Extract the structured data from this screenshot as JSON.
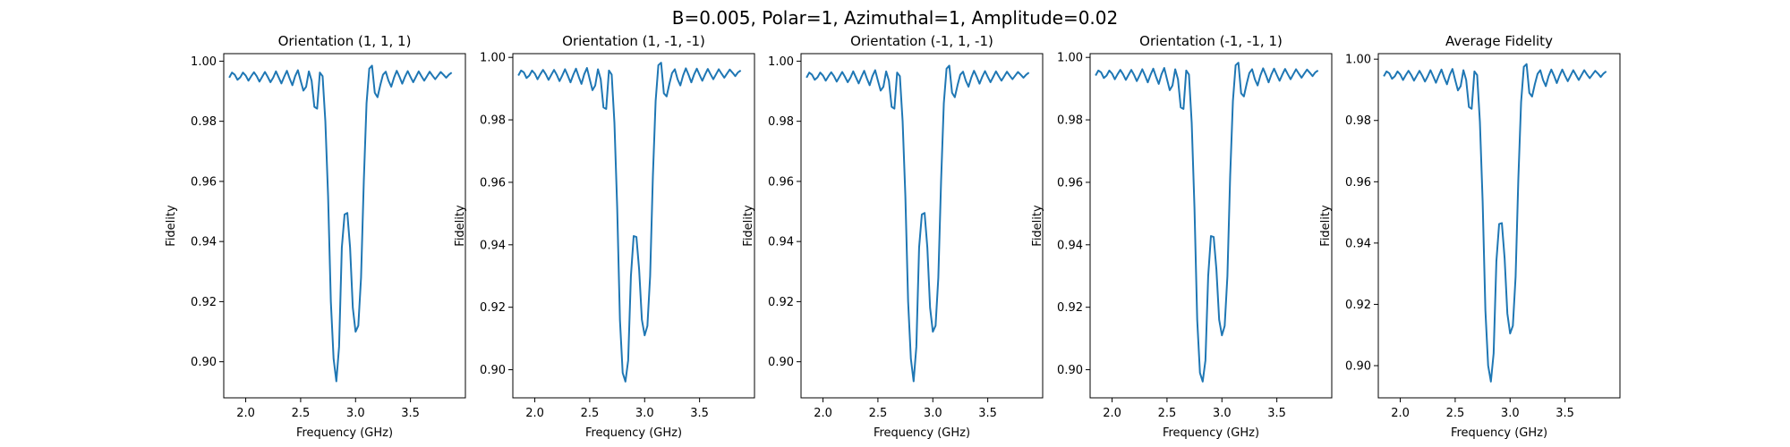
{
  "figure": {
    "suptitle": "B=0.005, Polar=1, Azimuthal=1, Amplitude=0.02",
    "line_color": "#1f77b4"
  },
  "chart_data": [
    {
      "type": "line",
      "title": "Orientation (1, 1, 1)",
      "xlabel": "Frequency (GHz)",
      "ylabel": "Fidelity",
      "xlim": [
        1.8,
        4.0
      ],
      "ylim": [
        0.888,
        1.0025
      ],
      "xticks": [
        "2.0",
        "2.5",
        "3.0",
        "3.5"
      ],
      "yticks": [
        "0.90",
        "0.92",
        "0.94",
        "0.96",
        "0.98",
        "1.00"
      ],
      "grid": false,
      "series": [
        {
          "x": [
            1.85,
            1.875,
            1.9,
            1.925,
            1.95,
            1.975,
            2.0,
            2.025,
            2.05,
            2.075,
            2.1,
            2.125,
            2.15,
            2.175,
            2.2,
            2.225,
            2.25,
            2.275,
            2.3,
            2.325,
            2.35,
            2.375,
            2.4,
            2.425,
            2.45,
            2.475,
            2.5,
            2.525,
            2.55,
            2.575,
            2.6,
            2.625,
            2.65,
            2.675,
            2.7,
            2.725,
            2.75,
            2.775,
            2.8,
            2.825,
            2.85,
            2.875,
            2.9,
            2.925,
            2.95,
            2.975,
            3.0,
            3.025,
            3.05,
            3.075,
            3.1,
            3.125,
            3.15,
            3.175,
            3.2,
            3.225,
            3.25,
            3.275,
            3.3,
            3.325,
            3.35,
            3.375,
            3.4,
            3.425,
            3.45,
            3.475,
            3.5,
            3.525,
            3.55,
            3.575,
            3.6,
            3.625,
            3.65,
            3.675,
            3.7,
            3.725,
            3.75,
            3.775,
            3.8,
            3.825,
            3.85,
            3.875
          ],
          "values": [
            0.9945,
            0.9962,
            0.9955,
            0.9938,
            0.9946,
            0.9962,
            0.9952,
            0.9935,
            0.995,
            0.9963,
            0.995,
            0.9932,
            0.9948,
            0.9964,
            0.9948,
            0.993,
            0.9945,
            0.9966,
            0.9946,
            0.9926,
            0.9948,
            0.9968,
            0.9942,
            0.992,
            0.995,
            0.997,
            0.9935,
            0.9902,
            0.9915,
            0.9966,
            0.9935,
            0.9848,
            0.9842,
            0.9962,
            0.995,
            0.98,
            0.955,
            0.92,
            0.901,
            0.8935,
            0.905,
            0.938,
            0.949,
            0.9495,
            0.938,
            0.918,
            0.91,
            0.912,
            0.928,
            0.96,
            0.986,
            0.9975,
            0.9985,
            0.9895,
            0.988,
            0.992,
            0.9955,
            0.9965,
            0.9935,
            0.9915,
            0.9945,
            0.9968,
            0.9948,
            0.9925,
            0.9948,
            0.9967,
            0.9948,
            0.993,
            0.9948,
            0.9966,
            0.995,
            0.9935,
            0.995,
            0.9965,
            0.9952,
            0.994,
            0.9952,
            0.9964,
            0.9955,
            0.9945,
            0.9955,
            0.9962
          ]
        }
      ]
    },
    {
      "type": "line",
      "title": "Orientation (1, -1, -1)",
      "xlabel": "Frequency (GHz)",
      "ylabel": "Fidelity",
      "xlim": [
        1.8,
        4.0
      ],
      "ylim": [
        0.891,
        1.0012
      ],
      "xticks": [
        "2.0",
        "2.5",
        "3.0",
        "3.5"
      ],
      "yticks": [
        "0.90",
        "0.92",
        "0.94",
        "0.96",
        "0.98",
        "1.00"
      ],
      "grid": false,
      "series": [
        {
          "x": [
            1.85,
            1.875,
            1.9,
            1.925,
            1.95,
            1.975,
            2.0,
            2.025,
            2.05,
            2.075,
            2.1,
            2.125,
            2.15,
            2.175,
            2.2,
            2.225,
            2.25,
            2.275,
            2.3,
            2.325,
            2.35,
            2.375,
            2.4,
            2.425,
            2.45,
            2.475,
            2.5,
            2.525,
            2.55,
            2.575,
            2.6,
            2.625,
            2.65,
            2.675,
            2.7,
            2.725,
            2.75,
            2.775,
            2.8,
            2.825,
            2.85,
            2.875,
            2.9,
            2.925,
            2.95,
            2.975,
            3.0,
            3.025,
            3.05,
            3.075,
            3.1,
            3.125,
            3.15,
            3.175,
            3.2,
            3.225,
            3.25,
            3.275,
            3.3,
            3.325,
            3.35,
            3.375,
            3.4,
            3.425,
            3.45,
            3.475,
            3.5,
            3.525,
            3.55,
            3.575,
            3.6,
            3.625,
            3.65,
            3.675,
            3.7,
            3.725,
            3.75,
            3.775,
            3.8,
            3.825,
            3.85,
            3.875
          ],
          "values": [
            0.9942,
            0.9958,
            0.9952,
            0.9934,
            0.9942,
            0.9958,
            0.9948,
            0.993,
            0.9946,
            0.996,
            0.9946,
            0.9928,
            0.9944,
            0.996,
            0.9944,
            0.9924,
            0.9942,
            0.9962,
            0.9942,
            0.992,
            0.9944,
            0.9964,
            0.9938,
            0.9915,
            0.9946,
            0.9966,
            0.993,
            0.9895,
            0.991,
            0.9962,
            0.993,
            0.984,
            0.9835,
            0.9958,
            0.9945,
            0.979,
            0.952,
            0.916,
            0.899,
            0.8962,
            0.903,
            0.93,
            0.9428,
            0.9425,
            0.932,
            0.916,
            0.911,
            0.914,
            0.93,
            0.962,
            0.986,
            0.9975,
            0.9983,
            0.9885,
            0.9875,
            0.9915,
            0.995,
            0.9962,
            0.993,
            0.991,
            0.9942,
            0.9965,
            0.9944,
            0.992,
            0.9945,
            0.9964,
            0.9944,
            0.9925,
            0.9945,
            0.9963,
            0.9946,
            0.993,
            0.9946,
            0.9962,
            0.9948,
            0.9935,
            0.9948,
            0.9961,
            0.9951,
            0.994,
            0.9952,
            0.9958
          ]
        }
      ]
    },
    {
      "type": "line",
      "title": "Orientation (-1, 1, -1)",
      "xlabel": "Frequency (GHz)",
      "ylabel": "Fidelity",
      "xlim": [
        1.8,
        4.0
      ],
      "ylim": [
        0.888,
        1.0025
      ],
      "xticks": [
        "2.0",
        "2.5",
        "3.0",
        "3.5"
      ],
      "yticks": [
        "0.90",
        "0.92",
        "0.94",
        "0.96",
        "0.98",
        "1.00"
      ],
      "grid": false,
      "series": [
        {
          "x": [
            1.85,
            1.875,
            1.9,
            1.925,
            1.95,
            1.975,
            2.0,
            2.025,
            2.05,
            2.075,
            2.1,
            2.125,
            2.15,
            2.175,
            2.2,
            2.225,
            2.25,
            2.275,
            2.3,
            2.325,
            2.35,
            2.375,
            2.4,
            2.425,
            2.45,
            2.475,
            2.5,
            2.525,
            2.55,
            2.575,
            2.6,
            2.625,
            2.65,
            2.675,
            2.7,
            2.725,
            2.75,
            2.775,
            2.8,
            2.825,
            2.85,
            2.875,
            2.9,
            2.925,
            2.95,
            2.975,
            3.0,
            3.025,
            3.05,
            3.075,
            3.1,
            3.125,
            3.15,
            3.175,
            3.2,
            3.225,
            3.25,
            3.275,
            3.3,
            3.325,
            3.35,
            3.375,
            3.4,
            3.425,
            3.45,
            3.475,
            3.5,
            3.525,
            3.55,
            3.575,
            3.6,
            3.625,
            3.65,
            3.675,
            3.7,
            3.725,
            3.75,
            3.775,
            3.8,
            3.825,
            3.85,
            3.875
          ],
          "values": [
            0.9945,
            0.9962,
            0.9955,
            0.9938,
            0.9946,
            0.9962,
            0.9952,
            0.9935,
            0.995,
            0.9963,
            0.995,
            0.9932,
            0.9948,
            0.9964,
            0.9948,
            0.993,
            0.9945,
            0.9966,
            0.9946,
            0.9926,
            0.9948,
            0.9968,
            0.9942,
            0.992,
            0.995,
            0.997,
            0.9935,
            0.9902,
            0.9915,
            0.9966,
            0.9935,
            0.9848,
            0.9842,
            0.9962,
            0.995,
            0.98,
            0.955,
            0.92,
            0.901,
            0.8935,
            0.905,
            0.938,
            0.949,
            0.9495,
            0.938,
            0.918,
            0.91,
            0.912,
            0.928,
            0.96,
            0.986,
            0.9975,
            0.9985,
            0.9895,
            0.988,
            0.992,
            0.9955,
            0.9965,
            0.9935,
            0.9915,
            0.9945,
            0.9968,
            0.9948,
            0.9925,
            0.9948,
            0.9967,
            0.9948,
            0.993,
            0.9948,
            0.9966,
            0.995,
            0.9935,
            0.995,
            0.9965,
            0.9952,
            0.994,
            0.9952,
            0.9964,
            0.9955,
            0.9945,
            0.9955,
            0.9962
          ]
        }
      ]
    },
    {
      "type": "line",
      "title": "Orientation (-1, -1, 1)",
      "xlabel": "Frequency (GHz)",
      "ylabel": "Fidelity",
      "xlim": [
        1.8,
        4.0
      ],
      "ylim": [
        0.891,
        1.0012
      ],
      "xticks": [
        "2.0",
        "2.5",
        "3.0",
        "3.5"
      ],
      "yticks": [
        "0.90",
        "0.92",
        "0.94",
        "0.96",
        "0.98",
        "1.00"
      ],
      "grid": false,
      "series": [
        {
          "x": [
            1.85,
            1.875,
            1.9,
            1.925,
            1.95,
            1.975,
            2.0,
            2.025,
            2.05,
            2.075,
            2.1,
            2.125,
            2.15,
            2.175,
            2.2,
            2.225,
            2.25,
            2.275,
            2.3,
            2.325,
            2.35,
            2.375,
            2.4,
            2.425,
            2.45,
            2.475,
            2.5,
            2.525,
            2.55,
            2.575,
            2.6,
            2.625,
            2.65,
            2.675,
            2.7,
            2.725,
            2.75,
            2.775,
            2.8,
            2.825,
            2.85,
            2.875,
            2.9,
            2.925,
            2.95,
            2.975,
            3.0,
            3.025,
            3.05,
            3.075,
            3.1,
            3.125,
            3.15,
            3.175,
            3.2,
            3.225,
            3.25,
            3.275,
            3.3,
            3.325,
            3.35,
            3.375,
            3.4,
            3.425,
            3.45,
            3.475,
            3.5,
            3.525,
            3.55,
            3.575,
            3.6,
            3.625,
            3.65,
            3.675,
            3.7,
            3.725,
            3.75,
            3.775,
            3.8,
            3.825,
            3.85,
            3.875
          ],
          "values": [
            0.9942,
            0.9958,
            0.9952,
            0.9934,
            0.9942,
            0.9958,
            0.9948,
            0.993,
            0.9946,
            0.996,
            0.9946,
            0.9928,
            0.9944,
            0.996,
            0.9944,
            0.9924,
            0.9942,
            0.9962,
            0.9942,
            0.992,
            0.9944,
            0.9964,
            0.9938,
            0.9915,
            0.9946,
            0.9966,
            0.993,
            0.9895,
            0.991,
            0.9962,
            0.993,
            0.984,
            0.9835,
            0.9958,
            0.9945,
            0.979,
            0.952,
            0.916,
            0.899,
            0.8962,
            0.903,
            0.93,
            0.9428,
            0.9425,
            0.932,
            0.916,
            0.911,
            0.914,
            0.93,
            0.962,
            0.986,
            0.9975,
            0.9983,
            0.9885,
            0.9875,
            0.9915,
            0.995,
            0.9962,
            0.993,
            0.991,
            0.9942,
            0.9965,
            0.9944,
            0.992,
            0.9945,
            0.9964,
            0.9944,
            0.9925,
            0.9945,
            0.9963,
            0.9946,
            0.993,
            0.9946,
            0.9962,
            0.9948,
            0.9935,
            0.9948,
            0.9961,
            0.9951,
            0.994,
            0.9952,
            0.9958
          ]
        }
      ]
    },
    {
      "type": "line",
      "title": "Average Fidelity",
      "xlabel": "Frequency (GHz)",
      "ylabel": "Fidelity",
      "xlim": [
        1.8,
        4.0
      ],
      "ylim": [
        0.8895,
        1.0018
      ],
      "xticks": [
        "2.0",
        "2.5",
        "3.0",
        "3.5"
      ],
      "yticks": [
        "0.90",
        "0.92",
        "0.94",
        "0.96",
        "0.98",
        "1.00"
      ],
      "grid": false,
      "series": [
        {
          "x": [
            1.85,
            1.875,
            1.9,
            1.925,
            1.95,
            1.975,
            2.0,
            2.025,
            2.05,
            2.075,
            2.1,
            2.125,
            2.15,
            2.175,
            2.2,
            2.225,
            2.25,
            2.275,
            2.3,
            2.325,
            2.35,
            2.375,
            2.4,
            2.425,
            2.45,
            2.475,
            2.5,
            2.525,
            2.55,
            2.575,
            2.6,
            2.625,
            2.65,
            2.675,
            2.7,
            2.725,
            2.75,
            2.775,
            2.8,
            2.825,
            2.85,
            2.875,
            2.9,
            2.925,
            2.95,
            2.975,
            3.0,
            3.025,
            3.05,
            3.075,
            3.1,
            3.125,
            3.15,
            3.175,
            3.2,
            3.225,
            3.25,
            3.275,
            3.3,
            3.325,
            3.35,
            3.375,
            3.4,
            3.425,
            3.45,
            3.475,
            3.5,
            3.525,
            3.55,
            3.575,
            3.6,
            3.625,
            3.65,
            3.675,
            3.7,
            3.725,
            3.75,
            3.775,
            3.8,
            3.825,
            3.85,
            3.875
          ],
          "values": [
            0.9944,
            0.996,
            0.9954,
            0.9936,
            0.9944,
            0.996,
            0.995,
            0.9932,
            0.9948,
            0.9962,
            0.9948,
            0.993,
            0.9946,
            0.9962,
            0.9946,
            0.9927,
            0.9944,
            0.9964,
            0.9944,
            0.9923,
            0.9946,
            0.9966,
            0.994,
            0.9918,
            0.9948,
            0.9968,
            0.9932,
            0.9898,
            0.9912,
            0.9964,
            0.9932,
            0.9844,
            0.9838,
            0.996,
            0.9948,
            0.9795,
            0.9535,
            0.918,
            0.9,
            0.8948,
            0.904,
            0.934,
            0.9462,
            0.9465,
            0.935,
            0.917,
            0.9105,
            0.913,
            0.929,
            0.961,
            0.986,
            0.9975,
            0.9984,
            0.989,
            0.9878,
            0.9918,
            0.9952,
            0.9964,
            0.9932,
            0.9912,
            0.9944,
            0.9966,
            0.9946,
            0.9922,
            0.9946,
            0.9966,
            0.9946,
            0.9928,
            0.9946,
            0.9964,
            0.9948,
            0.9932,
            0.9948,
            0.9964,
            0.995,
            0.9938,
            0.995,
            0.9962,
            0.9953,
            0.9942,
            0.9953,
            0.996
          ]
        }
      ]
    }
  ]
}
